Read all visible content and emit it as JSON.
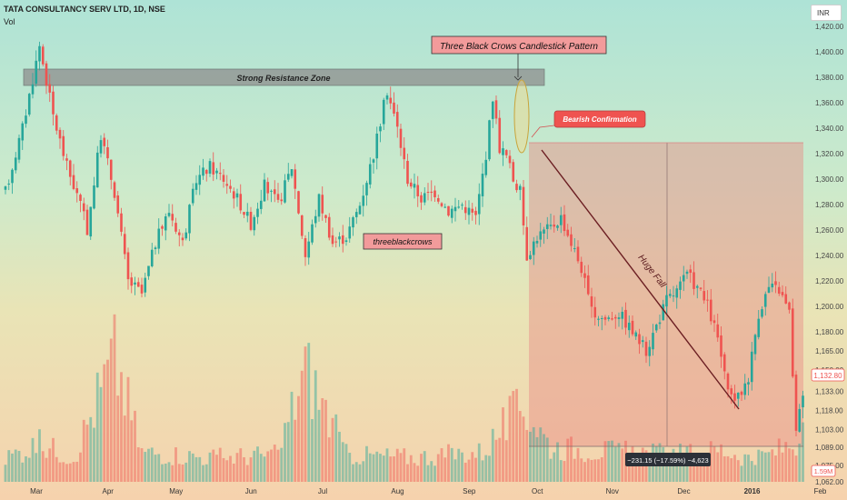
{
  "header": {
    "symbol": "TATA CONSULTANCY SERV LTD, 1D, NSE",
    "volume_label": "Vol",
    "currency": "INR"
  },
  "annotations": {
    "pattern_title": "Three Black Crows Candlestick Pattern",
    "resistance": "Strong Resistance Zone",
    "bearish": "Bearish Confirmation",
    "pattern_tag": "threeblackcrows",
    "huge_fall": "Huge Fall",
    "measure": "−231.15 (−17.59%) −4,623"
  },
  "price_labels": {
    "last_price": "1,132.80",
    "last_volume": "1.59M"
  },
  "colors": {
    "up": "#26a69a",
    "down": "#ef5350",
    "resistance_fill": "#8e8e8e",
    "pattern_label_fill": "#f29b9b",
    "bearish_fill": "#ef5350",
    "shaded_zone": "#e98a85",
    "trendline": "#6b1e22"
  },
  "chart_data": {
    "type": "candlestick",
    "title": "TATA CONSULTANCY SERV LTD, 1D, NSE",
    "interval": "1D",
    "exchange": "NSE",
    "y_axis": {
      "ticks": [
        1420,
        1400,
        1380,
        1360,
        1340,
        1320,
        1300,
        1280,
        1260,
        1240,
        1220,
        1200,
        1180,
        1165,
        1150,
        1133,
        1118,
        1103,
        1089,
        1075,
        1062
      ],
      "tick_labels": [
        "1,420.00",
        "1,400.00",
        "1,380.00",
        "1,360.00",
        "1,340.00",
        "1,320.00",
        "1,300.00",
        "1,280.00",
        "1,260.00",
        "1,240.00",
        "1,220.00",
        "1,200.00",
        "1,180.00",
        "1,165.00",
        "1,150.00",
        "1,133.00",
        "1,118.00",
        "1,103.00",
        "1,089.00",
        "1,075.00",
        "1,062.00"
      ],
      "range": [
        1062,
        1425
      ]
    },
    "x_axis": {
      "tick_labels": [
        "Mar",
        "Apr",
        "May",
        "Jun",
        "Jul",
        "Aug",
        "Sep",
        "Oct",
        "Nov",
        "Dec",
        "2016",
        "Feb"
      ],
      "tick_index": [
        0,
        21,
        41,
        63,
        84,
        106,
        127,
        147,
        169,
        190,
        210,
        230
      ]
    },
    "price_path": [
      [
        0,
        1290
      ],
      [
        5,
        1340
      ],
      [
        10,
        1405
      ],
      [
        14,
        1350
      ],
      [
        18,
        1310
      ],
      [
        22,
        1280
      ],
      [
        24,
        1260
      ],
      [
        28,
        1335
      ],
      [
        32,
        1290
      ],
      [
        36,
        1220
      ],
      [
        40,
        1210
      ],
      [
        44,
        1250
      ],
      [
        48,
        1275
      ],
      [
        52,
        1250
      ],
      [
        56,
        1300
      ],
      [
        60,
        1310
      ],
      [
        64,
        1300
      ],
      [
        68,
        1285
      ],
      [
        72,
        1265
      ],
      [
        76,
        1295
      ],
      [
        80,
        1280
      ],
      [
        84,
        1310
      ],
      [
        88,
        1240
      ],
      [
        92,
        1285
      ],
      [
        96,
        1250
      ],
      [
        100,
        1255
      ],
      [
        104,
        1280
      ],
      [
        108,
        1320
      ],
      [
        112,
        1370
      ],
      [
        115,
        1340
      ],
      [
        118,
        1300
      ],
      [
        122,
        1285
      ],
      [
        126,
        1290
      ],
      [
        130,
        1275
      ],
      [
        134,
        1280
      ],
      [
        138,
        1270
      ],
      [
        141,
        1320
      ],
      [
        143,
        1365
      ],
      [
        145,
        1325
      ],
      [
        147,
        1318
      ],
      [
        149,
        1300
      ],
      [
        151,
        1290
      ],
      [
        153,
        1240
      ],
      [
        156,
        1255
      ],
      [
        160,
        1262
      ],
      [
        163,
        1270
      ],
      [
        166,
        1250
      ],
      [
        169,
        1230
      ],
      [
        172,
        1195
      ],
      [
        176,
        1190
      ],
      [
        180,
        1195
      ],
      [
        184,
        1180
      ],
      [
        188,
        1165
      ],
      [
        191,
        1185
      ],
      [
        194,
        1205
      ],
      [
        197,
        1212
      ],
      [
        200,
        1225
      ],
      [
        203,
        1215
      ],
      [
        206,
        1200
      ],
      [
        209,
        1175
      ],
      [
        212,
        1130
      ],
      [
        215,
        1128
      ],
      [
        218,
        1145
      ],
      [
        221,
        1195
      ],
      [
        224,
        1215
      ],
      [
        227,
        1213
      ],
      [
        230,
        1195
      ],
      [
        232,
        1100
      ],
      [
        234,
        1132.8
      ]
    ],
    "volume_path": [
      [
        0,
        0.9
      ],
      [
        10,
        1.4
      ],
      [
        20,
        0.9
      ],
      [
        32,
        4.6
      ],
      [
        40,
        1.1
      ],
      [
        60,
        0.9
      ],
      [
        80,
        1.0
      ],
      [
        88,
        4.2
      ],
      [
        100,
        1.0
      ],
      [
        120,
        0.9
      ],
      [
        140,
        1.1
      ],
      [
        146,
        2.0
      ],
      [
        152,
        2.8
      ],
      [
        160,
        1.3
      ],
      [
        180,
        1.1
      ],
      [
        200,
        1.0
      ],
      [
        210,
        1.2
      ],
      [
        220,
        0.8
      ],
      [
        234,
        1.59
      ]
    ],
    "measure": {
      "change": -231.15,
      "change_pct": -17.59,
      "ticks": -4623
    },
    "last_price": 1132.8,
    "last_volume_millions": 1.59
  }
}
